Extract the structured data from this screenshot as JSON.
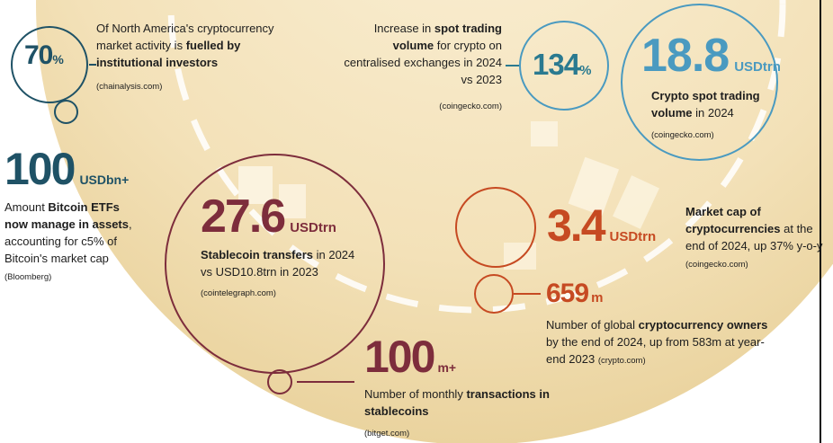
{
  "colors": {
    "teal": "#2a7a90",
    "navy": "#1f5266",
    "maroon": "#7d2d3c",
    "orange": "#c64a22",
    "light_blue": "#4a9ac0",
    "cream": "#f5e6c4"
  },
  "stats": {
    "institutional": {
      "value": "70",
      "unit": "%",
      "text_plain": "Of North America's cryptocurrency market activity is ",
      "text_bold": "fuelled by institutional investors",
      "source": "(chainalysis.com)"
    },
    "spot_increase": {
      "value": "134",
      "unit": "%",
      "text_plain1": "Increase in ",
      "text_bold": "spot trading volume",
      "text_plain2": " for crypto on centralised exchanges in 2024 vs 2023",
      "source": "(coingecko.com)"
    },
    "spot_volume": {
      "value": "18.8",
      "unit": "USDtrn",
      "text_bold": "Crypto spot trading volume",
      "text_plain": " in 2024",
      "source": "(coingecko.com)"
    },
    "bitcoin_etfs": {
      "value": "100",
      "unit": "USDbn+",
      "text_plain1": "Amount ",
      "text_bold": "Bitcoin ETFs now manage in assets",
      "text_plain2": ", accounting for c5% of Bitcoin's market cap ",
      "source": "(Bloomberg)"
    },
    "stablecoin_transfers": {
      "value": "27.6",
      "unit": "USDtrn",
      "text_bold": "Stablecoin transfers",
      "text_plain": " in 2024 vs USD10.8trn in 2023",
      "source": "(cointelegraph.com)"
    },
    "market_cap": {
      "value": "3.4",
      "unit": "USDtrn",
      "text_bold": "Market cap of cryptocurrencies",
      "text_plain": " at the end of 2024, up 37% y-o-y ",
      "source": "(coingecko.com)"
    },
    "owners": {
      "value": "659",
      "unit": "m",
      "text_plain1": "Number of global ",
      "text_bold": "cryptocurrency owners",
      "text_plain2": " by the end of 2024, up from 583m at year-end 2023 ",
      "source": "(crypto.com)"
    },
    "stablecoin_transactions": {
      "value": "100",
      "unit": "m+",
      "text_plain": "Number of monthly ",
      "text_bold": "transactions in stablecoins",
      "source": "(bitget.com)"
    }
  }
}
